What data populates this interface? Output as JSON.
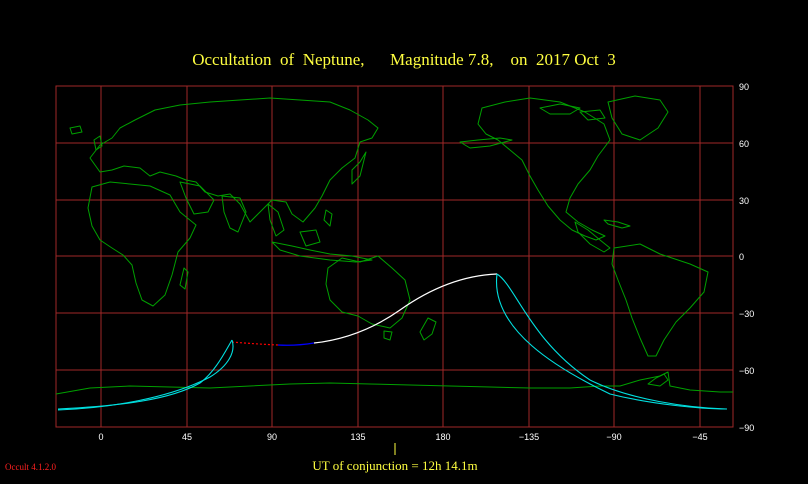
{
  "title": "Occultation  of  Neptune,      Magnitude 7.8,    on  2017 Oct  3",
  "map": {
    "lat_labels": [
      "90",
      "60",
      "30",
      "0",
      "−30",
      "−60",
      "−90"
    ],
    "lon_labels": [
      "0",
      "45",
      "90",
      "135",
      "180",
      "−135",
      "−90",
      "−45"
    ],
    "colors": {
      "coastline": "#00a000",
      "grid": "#a02828",
      "frame": "#a02828",
      "path_day": "#ffffff",
      "path_night": "#0000ff",
      "path_unobservable": "#ff0000",
      "limits": "#00e0e0",
      "axis_text": "#ffffff",
      "title": "#ffff40"
    }
  },
  "conjunction": {
    "label": "UT of conjunction = 12h 14.1m"
  },
  "version": "Occult 4.1.2.0"
}
